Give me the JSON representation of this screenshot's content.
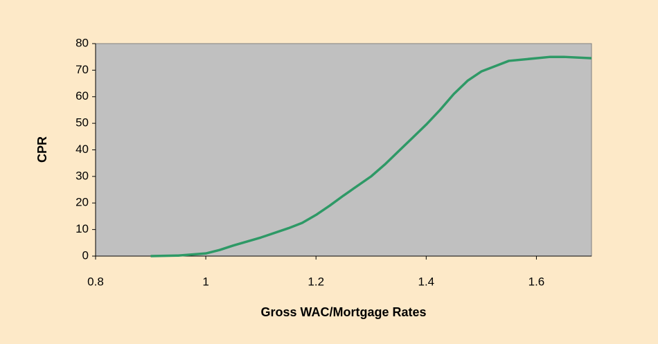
{
  "chart_data": {
    "type": "line",
    "x_label": "Gross WAC/Mortgage Rates",
    "y_label": "CPR",
    "x": [
      0.9,
      0.95,
      1.0,
      1.025,
      1.05,
      1.1,
      1.15,
      1.175,
      1.2,
      1.225,
      1.25,
      1.3,
      1.325,
      1.35,
      1.375,
      1.4,
      1.425,
      1.45,
      1.475,
      1.5,
      1.525,
      1.55,
      1.6,
      1.625,
      1.65,
      1.7
    ],
    "series": [
      {
        "color": "#2e9966",
        "values": [
          0,
          0.2,
          1,
          2.3,
          4,
          7,
          10.5,
          12.5,
          15.5,
          19,
          22.8,
          30,
          34.5,
          39.5,
          44.5,
          49.5,
          55,
          61,
          66,
          69.5,
          71.5,
          73.5,
          74.5,
          75,
          75,
          74.5
        ]
      }
    ],
    "xlim": [
      0.8,
      1.7
    ],
    "xticks": [
      0.8,
      1,
      1.2,
      1.4,
      1.6
    ],
    "ylim": [
      0,
      80
    ],
    "yticks": [
      0,
      10,
      20,
      30,
      40,
      50,
      60,
      70,
      80
    ],
    "grid": false,
    "background": "#fde9c8",
    "plot_background": "#c0c0c0"
  }
}
